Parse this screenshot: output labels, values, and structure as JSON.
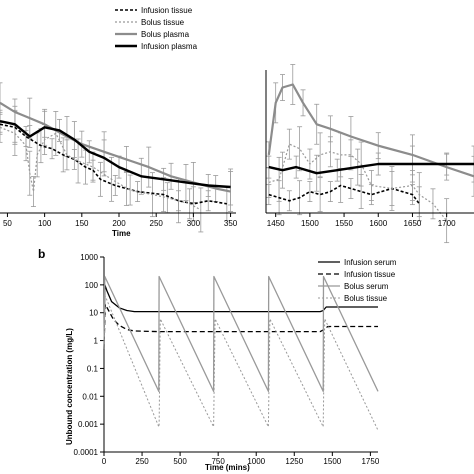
{
  "chart_data": [
    {
      "type": "line",
      "panel": "",
      "title": "",
      "xlabel": "Time",
      "ylabel": "",
      "legend_position": "top",
      "legend": [
        "Infusion tissue",
        "Bolus tissue",
        "Bolus plasma",
        "Infusion plasma"
      ],
      "left_segment": {
        "xlim": [
          40,
          360
        ],
        "xticks": [
          50,
          100,
          150,
          200,
          250,
          300,
          350
        ],
        "xtick_labels": [
          "50",
          "100",
          "150",
          "200",
          "250",
          "300",
          "350"
        ]
      },
      "right_segment": {
        "xlim": [
          1430,
          1740
        ],
        "xticks": [
          1450,
          1500,
          1550,
          1600,
          1650,
          1700
        ],
        "xtick_labels": [
          "1450",
          "1500",
          "1550",
          "1600",
          "1650",
          "1700"
        ]
      },
      "ylim": [
        0,
        1
      ],
      "series": [
        {
          "name": "Infusion tissue",
          "color": "#000000",
          "dash": "3,2",
          "width": 1.6,
          "points": [
            [
              40,
              0.58
            ],
            [
              60,
              0.56
            ],
            [
              75,
              0.5
            ],
            [
              95,
              0.44
            ],
            [
              110,
              0.42
            ],
            [
              125,
              0.38
            ],
            [
              140,
              0.35
            ],
            [
              155,
              0.3
            ],
            [
              165,
              0.28
            ],
            [
              175,
              0.22
            ],
            [
              195,
              0.18
            ],
            [
              210,
              0.16
            ],
            [
              225,
              0.14
            ],
            [
              260,
              0.12
            ],
            [
              280,
              0.08
            ],
            [
              300,
              0.06
            ],
            [
              320,
              0.08
            ],
            [
              345,
              0.06
            ],
            [
              1440,
              0.12
            ],
            [
              1455,
              0.1
            ],
            [
              1470,
              0.08
            ],
            [
              1485,
              0.1
            ],
            [
              1500,
              0.14
            ],
            [
              1515,
              0.12
            ],
            [
              1530,
              0.14
            ],
            [
              1545,
              0.18
            ],
            [
              1560,
              0.16
            ],
            [
              1575,
              0.14
            ],
            [
              1590,
              0.12
            ],
            [
              1620,
              0.16
            ],
            [
              1650,
              0.12
            ],
            [
              1660,
              0.06
            ]
          ]
        },
        {
          "name": "Bolus tissue",
          "color": "#999999",
          "dash": "2,2",
          "width": 1.2,
          "points": [
            [
              40,
              0.56
            ],
            [
              60,
              0.52
            ],
            [
              75,
              0.44
            ],
            [
              80,
              0.26
            ],
            [
              85,
              0.14
            ],
            [
              90,
              0.38
            ],
            [
              100,
              0.48
            ],
            [
              115,
              0.52
            ],
            [
              130,
              0.38
            ],
            [
              145,
              0.34
            ],
            [
              165,
              0.3
            ],
            [
              190,
              0.22
            ],
            [
              215,
              0.15
            ],
            [
              245,
              0.12
            ],
            [
              265,
              0.1
            ],
            [
              280,
              0.08
            ],
            [
              295,
              0.06
            ],
            [
              310,
              0.02
            ],
            [
              1440,
              0.2
            ],
            [
              1455,
              0.22
            ],
            [
              1470,
              0.45
            ],
            [
              1485,
              0.42
            ],
            [
              1500,
              0.32
            ],
            [
              1515,
              0.38
            ],
            [
              1530,
              0.4
            ],
            [
              1545,
              0.38
            ],
            [
              1560,
              0.38
            ],
            [
              1575,
              0.32
            ],
            [
              1590,
              0.18
            ],
            [
              1620,
              0.16
            ],
            [
              1650,
              0.18
            ],
            [
              1660,
              0.12
            ],
            [
              1680,
              0.06
            ],
            [
              1700,
              -0.05
            ]
          ]
        },
        {
          "name": "Bolus plasma",
          "color": "#8c8c8c",
          "dash": "",
          "width": 2.2,
          "points": [
            [
              40,
              0.72
            ],
            [
              60,
              0.66
            ],
            [
              80,
              0.62
            ],
            [
              100,
              0.58
            ],
            [
              130,
              0.5
            ],
            [
              150,
              0.45
            ],
            [
              180,
              0.4
            ],
            [
              210,
              0.35
            ],
            [
              240,
              0.3
            ],
            [
              270,
              0.24
            ],
            [
              300,
              0.2
            ],
            [
              330,
              0.16
            ],
            [
              350,
              0.14
            ],
            [
              1440,
              0.38
            ],
            [
              1450,
              0.72
            ],
            [
              1460,
              0.82
            ],
            [
              1475,
              0.84
            ],
            [
              1490,
              0.72
            ],
            [
              1510,
              0.58
            ],
            [
              1530,
              0.55
            ],
            [
              1560,
              0.5
            ],
            [
              1600,
              0.44
            ],
            [
              1650,
              0.38
            ],
            [
              1700,
              0.3
            ],
            [
              1740,
              0.24
            ]
          ]
        },
        {
          "name": "Infusion plasma",
          "color": "#000000",
          "dash": "",
          "width": 2.4,
          "points": [
            [
              40,
              0.6
            ],
            [
              60,
              0.58
            ],
            [
              80,
              0.5
            ],
            [
              100,
              0.56
            ],
            [
              120,
              0.54
            ],
            [
              140,
              0.48
            ],
            [
              160,
              0.4
            ],
            [
              180,
              0.36
            ],
            [
              200,
              0.3
            ],
            [
              230,
              0.24
            ],
            [
              260,
              0.22
            ],
            [
              290,
              0.2
            ],
            [
              320,
              0.18
            ],
            [
              350,
              0.17
            ],
            [
              1440,
              0.3
            ],
            [
              1460,
              0.28
            ],
            [
              1480,
              0.3
            ],
            [
              1510,
              0.26
            ],
            [
              1540,
              0.28
            ],
            [
              1570,
              0.3
            ],
            [
              1600,
              0.32
            ],
            [
              1650,
              0.32
            ],
            [
              1700,
              0.32
            ],
            [
              1740,
              0.32
            ]
          ]
        }
      ]
    },
    {
      "type": "line",
      "panel": "b",
      "title": "",
      "xlabel": "Time (mins)",
      "ylabel": "Unbound concentration (mg/L)",
      "legend_position": "top-right",
      "xlim": [
        0,
        1800
      ],
      "xticks": [
        0,
        250,
        500,
        750,
        1000,
        1250,
        1500,
        1750
      ],
      "xtick_labels": [
        "0",
        "250",
        "500",
        "750",
        "1000",
        "1250",
        "1500",
        "1750"
      ],
      "yscale": "log",
      "ylim": [
        0.0001,
        1000
      ],
      "yticks": [
        1000,
        100,
        10,
        1,
        0.1,
        0.01,
        0.001,
        0.0001
      ],
      "ytick_labels": [
        "1000",
        "100",
        "10",
        "1",
        "0.1",
        "0.01",
        "0.001",
        "0.0001"
      ],
      "series": [
        {
          "name": "Infusion serum",
          "color": "#000000",
          "dash": "",
          "width": 1.3,
          "points": [
            [
              0,
              0.5
            ],
            [
              5,
              100
            ],
            [
              20,
              60
            ],
            [
              50,
              25
            ],
            [
              100,
              15
            ],
            [
              150,
              12
            ],
            [
              200,
              11
            ],
            [
              360,
              11
            ],
            [
              720,
              11
            ],
            [
              1080,
              11
            ],
            [
              1420,
              11
            ],
            [
              1440,
              12
            ],
            [
              1460,
              16
            ],
            [
              1500,
              16
            ],
            [
              1800,
              16
            ]
          ]
        },
        {
          "name": "Infusion tissue",
          "color": "#000000",
          "dash": "5,3",
          "width": 1.3,
          "points": [
            [
              0,
              0.5
            ],
            [
              8,
              20
            ],
            [
              30,
              12
            ],
            [
              60,
              6
            ],
            [
              100,
              3.5
            ],
            [
              150,
              2.5
            ],
            [
              200,
              2.2
            ],
            [
              360,
              2.1
            ],
            [
              720,
              2.1
            ],
            [
              1080,
              2.1
            ],
            [
              1420,
              2.1
            ],
            [
              1440,
              2.4
            ],
            [
              1470,
              3.2
            ],
            [
              1800,
              3.2
            ]
          ]
        },
        {
          "name": "Bolus serum",
          "color": "#999999",
          "dash": "",
          "width": 1.3,
          "points": [
            [
              0,
              0.5
            ],
            [
              5,
              200
            ],
            [
              360,
              0.015
            ],
            [
              362,
              200
            ],
            [
              720,
              0.015
            ],
            [
              722,
              200
            ],
            [
              1080,
              0.015
            ],
            [
              1082,
              200
            ],
            [
              1440,
              0.015
            ],
            [
              1442,
              200
            ],
            [
              1800,
              0.015
            ]
          ]
        },
        {
          "name": "Bolus tissue",
          "color": "#999999",
          "dash": "2,2",
          "width": 1.0,
          "points": [
            [
              0,
              0.5
            ],
            [
              8,
              40
            ],
            [
              360,
              0.0008
            ],
            [
              362,
              0.0008
            ],
            [
              370,
              6
            ],
            [
              720,
              0.0008
            ],
            [
              730,
              6
            ],
            [
              1080,
              0.0008
            ],
            [
              1090,
              6
            ],
            [
              1440,
              0.0008
            ],
            [
              1450,
              6
            ],
            [
              1800,
              0.0006
            ]
          ]
        }
      ]
    }
  ]
}
